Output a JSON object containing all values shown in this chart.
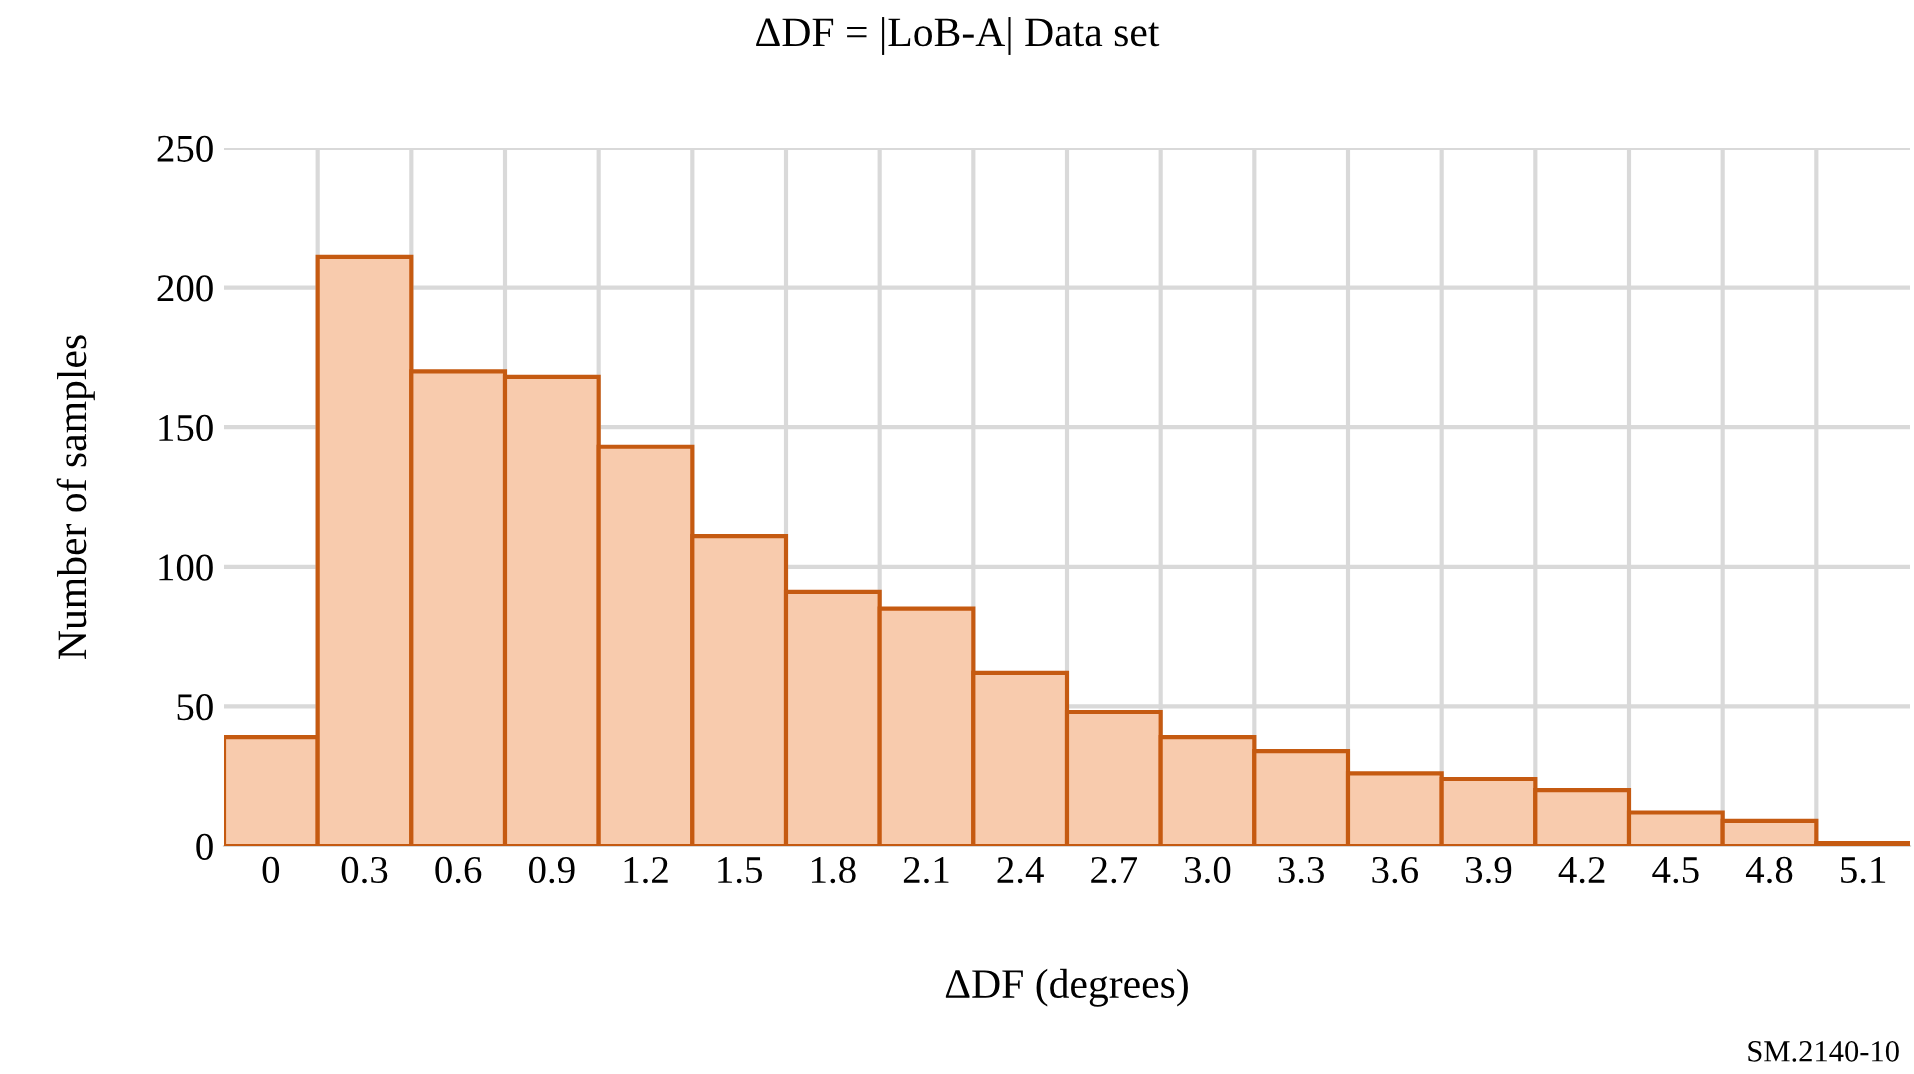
{
  "chart_data": {
    "type": "bar",
    "title": "ΔDF = |LoB-A| Data set",
    "xlabel": "ΔDF (degrees)",
    "ylabel": "Number of samples",
    "categories": [
      "0",
      "0.3",
      "0.6",
      "0.9",
      "1.2",
      "1.5",
      "1.8",
      "2.1",
      "2.4",
      "2.7",
      "3.0",
      "3.3",
      "3.6",
      "3.9",
      "4.2",
      "4.5",
      "4.8",
      "5.1"
    ],
    "values": [
      39,
      211,
      170,
      168,
      143,
      111,
      91,
      85,
      62,
      48,
      39,
      34,
      26,
      24,
      20,
      12,
      9,
      1
    ],
    "color": "#f8cbad",
    "ylim": [
      0,
      250
    ],
    "yticks": [
      0,
      50,
      100,
      150,
      200,
      250
    ],
    "grid": true,
    "legend": false,
    "annotations": [
      "SM.2140-10"
    ]
  }
}
